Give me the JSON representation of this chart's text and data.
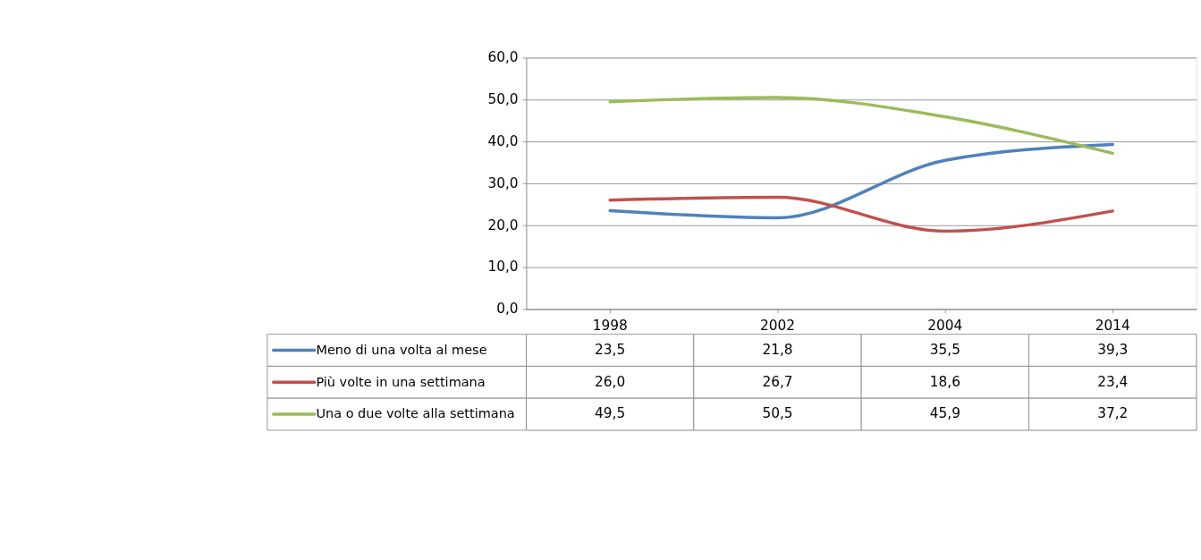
{
  "chart_data": {
    "type": "line",
    "categories": [
      "1998",
      "2002",
      "2004",
      "2014"
    ],
    "series": [
      {
        "name": "Meno di una volta al mese",
        "color": "#4f81bd",
        "values": [
          23.5,
          21.8,
          35.5,
          39.3
        ],
        "value_labels": [
          "23,5",
          "21,8",
          "35,5",
          "39,3"
        ]
      },
      {
        "name": "Più volte in una settimana",
        "color": "#c0504d",
        "values": [
          26.0,
          26.7,
          18.6,
          23.4
        ],
        "value_labels": [
          "26,0",
          "26,7",
          "18,6",
          "23,4"
        ]
      },
      {
        "name": "Una o due volte alla settimana",
        "color": "#9bbb59",
        "values": [
          49.5,
          50.5,
          45.9,
          37.2
        ],
        "value_labels": [
          "49,5",
          "50,5",
          "45,9",
          "37,2"
        ]
      }
    ],
    "ylim": [
      0,
      60
    ],
    "yticks": [
      {
        "value": 0,
        "label": "0,0"
      },
      {
        "value": 10,
        "label": "10,0"
      },
      {
        "value": 20,
        "label": "20,0"
      },
      {
        "value": 30,
        "label": "30,0"
      },
      {
        "value": 40,
        "label": "40,0"
      },
      {
        "value": 50,
        "label": "50,0"
      },
      {
        "value": 60,
        "label": "60,0"
      }
    ],
    "grid": "y",
    "legend": "bottom",
    "marker": "none",
    "line_style": "solid"
  }
}
